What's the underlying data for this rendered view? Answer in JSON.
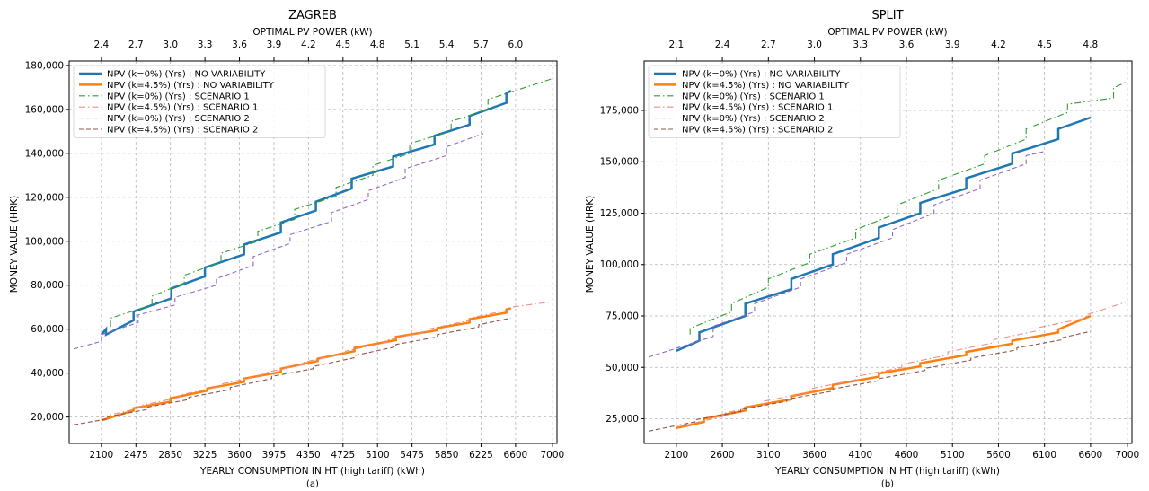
{
  "chart_data": [
    {
      "type": "line",
      "title": "ZAGREB",
      "top_axis_label": "OPTIMAL PV POWER (kW)",
      "top_tick_labels": [
        "2.4",
        "2.7",
        "3.0",
        "3.3",
        "3.6",
        "3.9",
        "4.2",
        "4.5",
        "4.8",
        "5.1",
        "5.4",
        "5.7",
        "6.0"
      ],
      "xlabel": "YEARLY CONSUMPTION IN HT (high tariff) (kWh)",
      "ylabel": "MONEY VALUE (HRK)",
      "caption": "(a)",
      "xlim": [
        1750,
        7050
      ],
      "ylim": [
        8000,
        182000
      ],
      "x_ticks": [
        2100,
        2475,
        2850,
        3225,
        3600,
        3975,
        4350,
        4725,
        5100,
        5475,
        5850,
        6225,
        6600,
        7000
      ],
      "x_tick_labels": [
        "2100",
        "2475",
        "2850",
        "3225",
        "3600",
        "3975",
        "4350",
        "4725",
        "5100",
        "5475",
        "5850",
        "6225",
        "6600",
        "7000"
      ],
      "y_ticks": [
        20000,
        40000,
        60000,
        80000,
        100000,
        120000,
        140000,
        160000,
        180000
      ],
      "y_tick_labels": [
        "20,000",
        "40,000",
        "60,000",
        "80,000",
        "100,000",
        "120,000",
        "140,000",
        "160,000",
        "180,000"
      ],
      "grid": true,
      "legend_position": "top-left",
      "series": [
        {
          "name": "NPV (k=0%) (Yrs) : NO VARIABILITY",
          "color": "#1f77b4",
          "style": "solid",
          "width": 2.5,
          "x": [
            2100,
            2150,
            2150,
            2450,
            2450,
            2860,
            2860,
            3225,
            3225,
            3650,
            3650,
            4050,
            4050,
            4430,
            4430,
            4820,
            4820,
            5270,
            5270,
            5720,
            5720,
            6100,
            6100,
            6500,
            6500,
            6550
          ],
          "y": [
            57500,
            60000,
            57500,
            64000,
            68000,
            74000,
            78500,
            84000,
            88000,
            94000,
            98500,
            104000,
            108500,
            114000,
            118000,
            124000,
            128500,
            134000,
            138500,
            144000,
            148000,
            153000,
            157000,
            163000,
            167500,
            168500
          ]
        },
        {
          "name": "NPV (k=4.5%) (Yrs) : NO VARIABILITY",
          "color": "#ff7f0e",
          "style": "solid",
          "width": 2.5,
          "x": [
            2100,
            2450,
            2450,
            2850,
            2850,
            3250,
            3250,
            3650,
            3650,
            4050,
            4050,
            4450,
            4450,
            4850,
            4850,
            5300,
            5300,
            5750,
            5750,
            6100,
            6100,
            6500,
            6500,
            6550
          ],
          "y": [
            18500,
            23000,
            24000,
            27000,
            28500,
            32000,
            33000,
            36000,
            37500,
            40500,
            42000,
            45500,
            46500,
            50000,
            51500,
            55000,
            56500,
            59500,
            60500,
            63000,
            64500,
            67500,
            69000,
            69500
          ]
        },
        {
          "name": "NPV (k=0%) (Yrs) : SCENARIO 1",
          "color": "#2ca02c",
          "style": "dashdot",
          "width": 1.1,
          "x": [
            2200,
            2200,
            2650,
            2650,
            3000,
            3000,
            3400,
            3400,
            3800,
            3800,
            4200,
            4200,
            4650,
            4650,
            5050,
            5050,
            5450,
            5450,
            5900,
            5900,
            6300,
            6300,
            7000
          ],
          "y": [
            61000,
            65000,
            71000,
            75000,
            81000,
            84500,
            90500,
            94500,
            100000,
            104500,
            110000,
            114500,
            120500,
            124500,
            130000,
            134500,
            140000,
            144500,
            150000,
            154500,
            160000,
            164500,
            174000
          ]
        },
        {
          "name": "NPV (k=4.5%) (Yrs) : SCENARIO 1",
          "color": "#ef8c8c",
          "style": "dashdot",
          "width": 1.1,
          "x": [
            2100,
            2550,
            2550,
            2950,
            2950,
            3400,
            3400,
            3850,
            3850,
            4300,
            4300,
            4750,
            4750,
            5200,
            5200,
            5650,
            5650,
            6100,
            6100,
            6550,
            6550,
            7000
          ],
          "y": [
            20000,
            24500,
            25500,
            29000,
            30000,
            34000,
            35000,
            39000,
            40000,
            44000,
            45000,
            49000,
            50000,
            54000,
            55000,
            59000,
            60000,
            64000,
            65000,
            69000,
            70000,
            72500
          ]
        },
        {
          "name": "NPV (k=0%) (Yrs) : SCENARIO 2",
          "color": "#9467bd",
          "style": "dashed",
          "width": 1.1,
          "x": [
            1800,
            2100,
            2100,
            2500,
            2500,
            2900,
            2900,
            3350,
            3350,
            3750,
            3750,
            4150,
            4150,
            4600,
            4600,
            5000,
            5000,
            5400,
            5400,
            5850,
            5850,
            6250
          ],
          "y": [
            51000,
            54500,
            57500,
            63000,
            66500,
            71000,
            74500,
            80000,
            83000,
            89000,
            93000,
            99000,
            103000,
            109000,
            113000,
            119000,
            123000,
            129000,
            133000,
            139000,
            143000,
            149000
          ]
        },
        {
          "name": "NPV (k=4.5%) (Yrs) : SCENARIO 2",
          "color": "#8c564b",
          "style": "dashed",
          "width": 1.1,
          "x": [
            1800,
            2150,
            2150,
            2600,
            2600,
            3050,
            3050,
            3500,
            3500,
            3950,
            3950,
            4400,
            4400,
            4850,
            4850,
            5300,
            5300,
            5750,
            5750,
            6200,
            6200,
            6550
          ],
          "y": [
            16500,
            19000,
            20000,
            23500,
            24500,
            28000,
            29000,
            32500,
            33500,
            37500,
            38500,
            42000,
            43000,
            47000,
            48000,
            52000,
            53000,
            56500,
            57500,
            61000,
            62000,
            65000
          ]
        }
      ]
    },
    {
      "type": "line",
      "title": "SPLIT",
      "top_axis_label": "OPTIMAL PV POWER (kW)",
      "top_tick_labels": [
        "2.1",
        "2.4",
        "2.7",
        "3.0",
        "3.3",
        "3.6",
        "3.9",
        "4.2",
        "4.5",
        "4.8"
      ],
      "xlabel": "YEARLY CONSUMPTION IN HT (high tariff) (kWh)",
      "ylabel": "MONEY VALUE (HRK)",
      "caption": "(b)",
      "xlim": [
        1750,
        7050
      ],
      "ylim": [
        13000,
        199000
      ],
      "x_ticks": [
        2100,
        2600,
        3100,
        3600,
        4100,
        4600,
        5100,
        5600,
        6100,
        6600,
        7000
      ],
      "x_tick_labels": [
        "2100",
        "2600",
        "3100",
        "3600",
        "4100",
        "4600",
        "5100",
        "5600",
        "6100",
        "6600",
        "7000"
      ],
      "y_ticks": [
        25000,
        50000,
        75000,
        100000,
        125000,
        150000,
        175000
      ],
      "y_tick_labels": [
        "25,000",
        "50,000",
        "75,000",
        "100,000",
        "125,000",
        "150,000",
        "175,000"
      ],
      "grid": true,
      "legend_position": "top-left",
      "series": [
        {
          "name": "NPV (k=0%) (Yrs) : NO VARIABILITY",
          "color": "#1f77b4",
          "style": "solid",
          "width": 2.5,
          "x": [
            2100,
            2350,
            2350,
            2850,
            2850,
            3350,
            3350,
            3800,
            3800,
            4300,
            4300,
            4750,
            4750,
            5250,
            5250,
            5750,
            5750,
            6250,
            6250,
            6600
          ],
          "y": [
            58000,
            63000,
            67000,
            75000,
            81000,
            88000,
            93000,
            100000,
            105000,
            113000,
            118000,
            125000,
            130000,
            137000,
            142000,
            149000,
            154000,
            161000,
            166000,
            171500
          ]
        },
        {
          "name": "NPV (k=4.5%) (Yrs) : NO VARIABILITY",
          "color": "#ff7f0e",
          "style": "solid",
          "width": 2.5,
          "x": [
            2100,
            2400,
            2400,
            2850,
            2850,
            3350,
            3350,
            3800,
            3800,
            4300,
            4300,
            4750,
            4750,
            5250,
            5250,
            5750,
            5750,
            6250,
            6250,
            6600
          ],
          "y": [
            20500,
            23500,
            25000,
            29000,
            30500,
            34500,
            36000,
            40000,
            41500,
            45500,
            47000,
            50500,
            52000,
            56000,
            57500,
            61500,
            63000,
            67000,
            68500,
            75000
          ]
        },
        {
          "name": "NPV (k=0%) (Yrs) : SCENARIO 1",
          "color": "#2ca02c",
          "style": "dashdot",
          "width": 1.1,
          "x": [
            2250,
            2250,
            2700,
            2700,
            3100,
            3100,
            3550,
            3550,
            4050,
            4050,
            4500,
            4500,
            4950,
            4950,
            5450,
            5450,
            5900,
            5900,
            6350,
            6350,
            6850,
            6850,
            7000
          ],
          "y": [
            66000,
            69000,
            77000,
            81000,
            89000,
            93000,
            101000,
            105000,
            113000,
            117000,
            125000,
            129000,
            137000,
            141000,
            149000,
            153000,
            161000,
            166000,
            174000,
            178000,
            181000,
            186000,
            189000
          ]
        },
        {
          "name": "NPV (k=4.5%) (Yrs) : SCENARIO 1",
          "color": "#ef8c8c",
          "style": "dashdot",
          "width": 1.1,
          "x": [
            2150,
            2600,
            2600,
            3050,
            3050,
            3550,
            3550,
            4050,
            4050,
            4550,
            4550,
            5050,
            5050,
            5550,
            5550,
            6050,
            6050,
            6550,
            6550,
            7000
          ],
          "y": [
            21500,
            26000,
            27500,
            32000,
            33500,
            38000,
            39500,
            44000,
            45500,
            50000,
            51500,
            56000,
            57500,
            62000,
            63500,
            68000,
            69500,
            74000,
            75500,
            82000
          ]
        },
        {
          "name": "NPV (k=0%) (Yrs) : SCENARIO 2",
          "color": "#9467bd",
          "style": "dashed",
          "width": 1.1,
          "x": [
            1800,
            2500,
            2500,
            2950,
            2950,
            3450,
            3450,
            3950,
            3950,
            4450,
            4450,
            4900,
            4900,
            5400,
            5400,
            5900,
            5900,
            6100
          ],
          "y": [
            55000,
            65000,
            70000,
            77000,
            81000,
            89000,
            93000,
            101000,
            105000,
            113000,
            117000,
            125000,
            129000,
            137000,
            141000,
            149000,
            153000,
            155000
          ]
        },
        {
          "name": "NPV (k=4.5%) (Yrs) : SCENARIO 2",
          "color": "#8c564b",
          "style": "dashed",
          "width": 1.1,
          "x": [
            1800,
            2300,
            2300,
            2800,
            2800,
            3300,
            3300,
            3800,
            3800,
            4300,
            4300,
            4800,
            4800,
            5300,
            5300,
            5800,
            5800,
            6300,
            6300,
            6600
          ],
          "y": [
            19000,
            23500,
            24500,
            28500,
            29500,
            33500,
            34500,
            38500,
            39500,
            43500,
            44500,
            48500,
            49500,
            53500,
            54500,
            58500,
            59500,
            63500,
            64500,
            67500
          ]
        }
      ]
    }
  ]
}
